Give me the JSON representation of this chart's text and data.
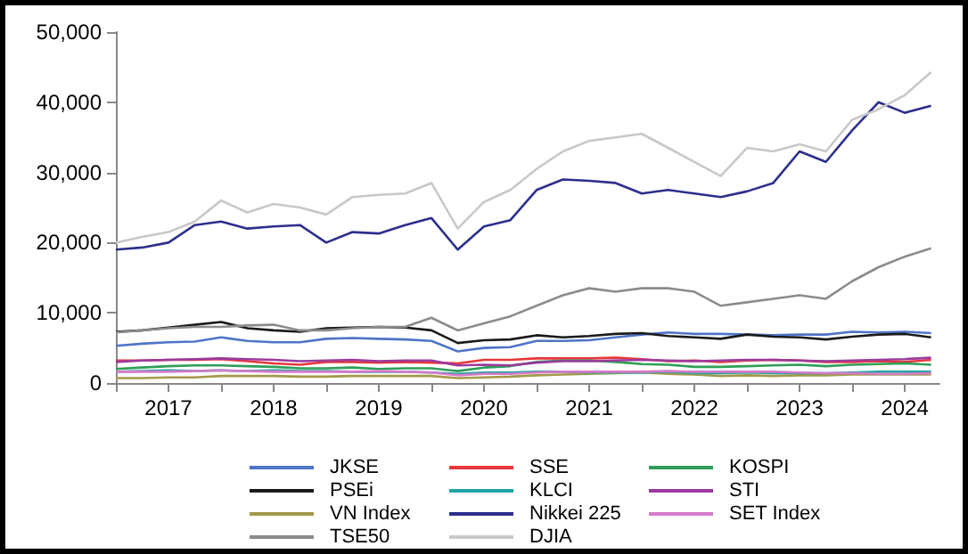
{
  "chart_data": {
    "type": "line",
    "x": [
      2017.0,
      2017.25,
      2017.5,
      2017.75,
      2018.0,
      2018.25,
      2018.5,
      2018.75,
      2019.0,
      2019.25,
      2019.5,
      2019.75,
      2020.0,
      2020.25,
      2020.5,
      2020.75,
      2021.0,
      2021.25,
      2021.5,
      2021.75,
      2022.0,
      2022.25,
      2022.5,
      2022.75,
      2023.0,
      2023.25,
      2023.5,
      2023.75,
      2024.0,
      2024.25,
      2024.5,
      2024.75
    ],
    "xlim": [
      2017.0,
      2024.83
    ],
    "xticks": [
      {
        "value": 2017,
        "label": null
      },
      {
        "value": 2017.5,
        "label": "2017"
      },
      {
        "value": 2018,
        "label": null
      },
      {
        "value": 2018.5,
        "label": "2018"
      },
      {
        "value": 2019,
        "label": null
      },
      {
        "value": 2019.5,
        "label": "2019"
      },
      {
        "value": 2020,
        "label": null
      },
      {
        "value": 2020.5,
        "label": "2020"
      },
      {
        "value": 2021,
        "label": null
      },
      {
        "value": 2021.5,
        "label": "2021"
      },
      {
        "value": 2022,
        "label": null
      },
      {
        "value": 2022.5,
        "label": "2022"
      },
      {
        "value": 2023,
        "label": null
      },
      {
        "value": 2023.5,
        "label": "2023"
      },
      {
        "value": 2024,
        "label": null
      },
      {
        "value": 2024.5,
        "label": "2024"
      }
    ],
    "ylim": [
      0,
      50000
    ],
    "yticks": [
      {
        "value": 0,
        "label": "0"
      },
      {
        "value": 10000,
        "label": "10,000"
      },
      {
        "value": 20000,
        "label": "20,000"
      },
      {
        "value": 30000,
        "label": "30,000"
      },
      {
        "value": 40000,
        "label": "40,000"
      },
      {
        "value": 50000,
        "label": "50,000"
      }
    ],
    "grid": false,
    "legend": "bottom",
    "marker": "none",
    "line_style": "solid",
    "series": [
      {
        "name": "JKSE",
        "color": "#4f74c8",
        "values": [
          5300,
          5600,
          5800,
          5900,
          6500,
          6000,
          5800,
          5800,
          6300,
          6400,
          6300,
          6200,
          6000,
          4500,
          5000,
          5100,
          6000,
          6000,
          6100,
          6500,
          6900,
          7200,
          7000,
          7000,
          6900,
          6800,
          6900,
          6900,
          7300,
          7200,
          7300,
          7100
        ]
      },
      {
        "name": "PSEi",
        "color": "#1a1a1a",
        "values": [
          7300,
          7500,
          7900,
          8300,
          8700,
          7800,
          7500,
          7300,
          7800,
          7900,
          8000,
          7900,
          7500,
          5700,
          6100,
          6200,
          6800,
          6500,
          6700,
          7000,
          7100,
          6700,
          6500,
          6300,
          6900,
          6600,
          6500,
          6200,
          6600,
          6900,
          7000,
          6500
        ]
      },
      {
        "name": "VN Index",
        "color": "#a39a4a",
        "values": [
          700,
          700,
          800,
          800,
          1000,
          1000,
          1000,
          900,
          900,
          1000,
          1000,
          1000,
          1000,
          700,
          800,
          900,
          1100,
          1200,
          1300,
          1400,
          1500,
          1300,
          1200,
          1000,
          1100,
          1000,
          1100,
          1100,
          1200,
          1200,
          1200,
          1200
        ]
      },
      {
        "name": "TSE50",
        "color": "#8c8c8c",
        "values": [
          7200,
          7500,
          7800,
          8000,
          8000,
          8200,
          8300,
          7500,
          7500,
          7800,
          8000,
          8000,
          9300,
          7500,
          8500,
          9500,
          11000,
          12500,
          13500,
          13000,
          13500,
          13500,
          13000,
          11000,
          11500,
          12000,
          12500,
          12000,
          14500,
          16500,
          18000,
          19200
        ]
      },
      {
        "name": "SSE",
        "color": "#e8363a",
        "values": [
          3200,
          3200,
          3300,
          3300,
          3400,
          3100,
          2800,
          2600,
          3000,
          3000,
          2900,
          3000,
          2900,
          2800,
          3300,
          3300,
          3500,
          3500,
          3500,
          3600,
          3400,
          3100,
          3200,
          3000,
          3200,
          3300,
          3200,
          3000,
          3000,
          3100,
          3000,
          3300
        ]
      },
      {
        "name": "KLCI",
        "color": "#20a5a0",
        "values": [
          1600,
          1700,
          1800,
          1700,
          1800,
          1700,
          1800,
          1700,
          1700,
          1600,
          1600,
          1600,
          1500,
          1300,
          1500,
          1500,
          1600,
          1600,
          1500,
          1500,
          1500,
          1600,
          1400,
          1400,
          1500,
          1400,
          1400,
          1400,
          1500,
          1600,
          1600,
          1600
        ]
      },
      {
        "name": "Nikkei 225",
        "color": "#2c2f8c",
        "values": [
          19000,
          19300,
          20000,
          22500,
          23000,
          22000,
          22300,
          22500,
          20000,
          21500,
          21300,
          22500,
          23500,
          19000,
          22300,
          23200,
          27500,
          29000,
          28800,
          28500,
          27000,
          27500,
          27000,
          26500,
          27300,
          28500,
          33000,
          31500,
          36000,
          40000,
          38500,
          39500
        ]
      },
      {
        "name": "DJIA",
        "color": "#c8c8c8",
        "values": [
          20000,
          20800,
          21500,
          23000,
          26000,
          24300,
          25500,
          25000,
          24000,
          26500,
          26800,
          27000,
          28500,
          22000,
          25800,
          27500,
          30500,
          33000,
          34500,
          35000,
          35500,
          33500,
          31500,
          29500,
          33500,
          33000,
          34000,
          33000,
          37500,
          39000,
          41000,
          44300
        ]
      },
      {
        "name": "KOSPI",
        "color": "#2e9e58",
        "values": [
          2000,
          2200,
          2400,
          2500,
          2500,
          2400,
          2300,
          2100,
          2100,
          2200,
          2000,
          2100,
          2100,
          1700,
          2200,
          2400,
          3000,
          3200,
          3200,
          3000,
          2700,
          2600,
          2300,
          2300,
          2400,
          2500,
          2600,
          2400,
          2600,
          2700,
          2800,
          2600
        ]
      },
      {
        "name": "STI",
        "color": "#9b3a9e",
        "values": [
          3000,
          3200,
          3300,
          3400,
          3500,
          3400,
          3300,
          3100,
          3200,
          3300,
          3100,
          3200,
          3200,
          2500,
          2600,
          2500,
          2900,
          3100,
          3100,
          3200,
          3300,
          3200,
          3100,
          3200,
          3300,
          3300,
          3200,
          3100,
          3200,
          3300,
          3400,
          3600
        ]
      },
      {
        "name": "SET Index",
        "color": "#d67ac9",
        "values": [
          1600,
          1600,
          1600,
          1700,
          1800,
          1700,
          1600,
          1600,
          1600,
          1600,
          1700,
          1600,
          1500,
          1100,
          1300,
          1300,
          1500,
          1600,
          1600,
          1600,
          1600,
          1700,
          1600,
          1600,
          1600,
          1600,
          1500,
          1400,
          1400,
          1300,
          1300,
          1400
        ]
      }
    ]
  }
}
